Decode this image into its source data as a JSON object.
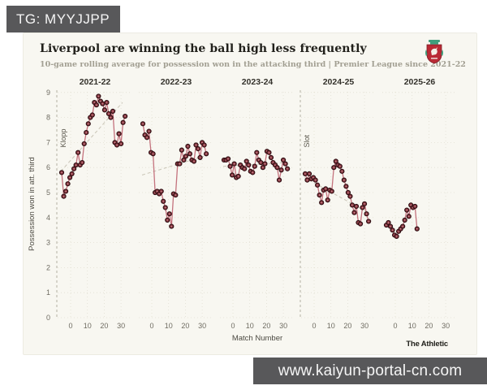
{
  "watermarks": {
    "telegram": "TG: MYYJJPP",
    "url": "www.kaiyun-portal-cn.com"
  },
  "header": {
    "title": "Liverpool are winning the ball high less frequently",
    "subtitle": "10-game rolling average for possession won in the attacking third | Premier League since 2021-22",
    "crest": "liverpool-crest"
  },
  "footer": {
    "brand": "The Athletic"
  },
  "colors": {
    "card_bg": "#f8f7f1",
    "banner_bg": "#58585a",
    "line": "#c4727d",
    "marker_fill": "#84333c",
    "marker_stroke": "#2b0e12",
    "grid": "#e2dfd2",
    "manager_line": "#b3b0a4",
    "trend_line": "#cdc9bb",
    "crest_red": "#b92a35",
    "crest_green": "#3e9e7c"
  },
  "chart_data": {
    "type": "line",
    "title": "Liverpool are winning the ball high less frequently",
    "subtitle": "10-game rolling average for possession won in the attacking third | Premier League since 2021-22",
    "xlabel": "Match Number",
    "ylabel": "Possession won in att. third",
    "ylim": [
      0,
      9
    ],
    "yticks": [
      0,
      1,
      2,
      3,
      4,
      5,
      6,
      7,
      8,
      9
    ],
    "xticks": [
      0,
      10,
      20,
      30
    ],
    "grid": true,
    "legend": "none",
    "facets": [
      {
        "season": "2021-22",
        "manager_marker": "Klopp",
        "trend": [
          5.85,
          8.6
        ],
        "values": [
          5.8,
          4.85,
          5.05,
          5.35,
          5.6,
          5.75,
          5.95,
          6.1,
          6.6,
          6.1,
          6.2,
          6.95,
          7.4,
          7.75,
          8.0,
          8.1,
          8.6,
          8.5,
          8.85,
          8.65,
          8.55,
          8.3,
          8.6,
          8.15,
          8.0,
          8.25,
          7.0,
          6.9,
          7.35,
          6.95,
          7.8,
          8.05
        ]
      },
      {
        "season": "2022-23",
        "manager_marker": null,
        "trend": [
          5.7,
          6.45
        ],
        "values": [
          7.75,
          7.3,
          7.2,
          7.45,
          6.6,
          6.55,
          5.0,
          5.05,
          4.95,
          5.05,
          4.65,
          4.4,
          3.9,
          4.15,
          3.65,
          4.95,
          4.9,
          6.15,
          6.15,
          6.7,
          6.3,
          6.45,
          6.85,
          6.55,
          6.3,
          6.25,
          6.9,
          6.75,
          6.4,
          7.0,
          6.9,
          6.55
        ]
      },
      {
        "season": "2023-24",
        "manager_marker": null,
        "trend": [
          6.05,
          6.2
        ],
        "values": [
          6.3,
          6.3,
          6.35,
          6.05,
          5.7,
          6.15,
          5.6,
          5.65,
          6.1,
          6.0,
          5.95,
          6.25,
          6.1,
          5.85,
          5.8,
          6.05,
          6.6,
          6.3,
          6.2,
          6.0,
          6.15,
          6.65,
          6.6,
          6.4,
          6.2,
          6.1,
          6.0,
          5.5,
          5.9,
          6.3,
          6.15,
          5.95
        ]
      },
      {
        "season": "2024-25",
        "manager_marker": "Slot",
        "trend": [
          5.6,
          4.25
        ],
        "values": [
          5.75,
          5.5,
          5.75,
          5.55,
          5.6,
          5.5,
          5.3,
          4.9,
          4.6,
          5.1,
          5.15,
          4.7,
          5.1,
          5.05,
          6.0,
          6.25,
          6.1,
          6.05,
          5.85,
          5.5,
          5.25,
          5.0,
          4.85,
          4.5,
          4.2,
          4.45,
          3.8,
          3.75,
          4.4,
          4.55,
          4.15,
          3.85
        ]
      },
      {
        "season": "2025-26",
        "manager_marker": null,
        "trend": null,
        "values": [
          3.7,
          3.8,
          3.65,
          3.5,
          3.3,
          3.25,
          3.45,
          3.55,
          3.65,
          3.9,
          4.3,
          4.05,
          4.5,
          4.4,
          4.45,
          3.55
        ]
      }
    ]
  }
}
